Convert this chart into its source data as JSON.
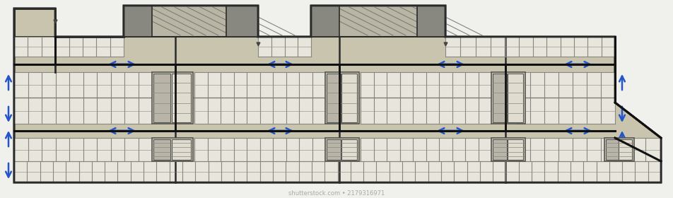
{
  "bg_color": "#f0f0ec",
  "floor_color": "#c8c4ae",
  "wall_color": "#2a2a2a",
  "stall_fill": "#e8e6dc",
  "stall_stroke": "#888880",
  "dark_box": "#888880",
  "ramp_fill": "#c0bdb0",
  "stair_fill": "#b8b5a8",
  "arrow_color": "#2255cc",
  "figsize": [
    9.52,
    2.8
  ],
  "dpi": 100,
  "watermark": "shutterstock.com • 2179316971"
}
